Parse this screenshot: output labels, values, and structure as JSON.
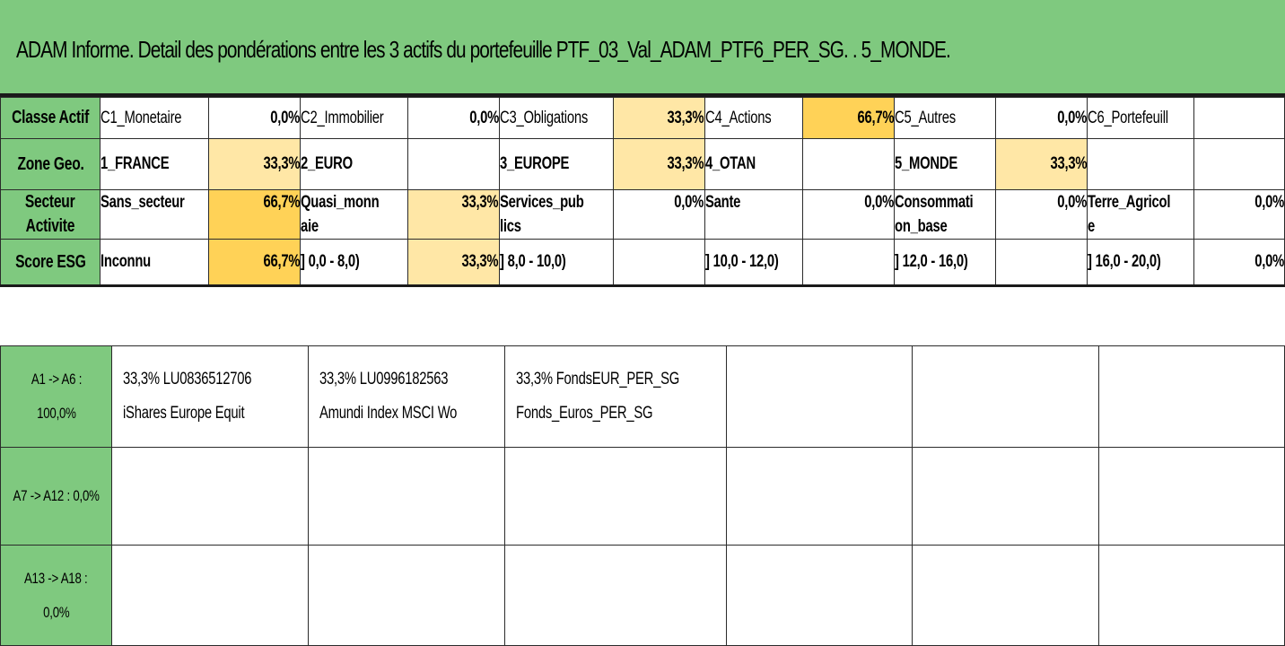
{
  "title": "ADAM Informe. Detail des pondérations entre les 3 actifs du portefeuille PTF_03_Val_ADAM_PTF6_PER_SG. . 5_MONDE.",
  "rows": {
    "classe": {
      "header": "Classe Actif",
      "cells": [
        {
          "label": "C1_Monetaire",
          "value": "0,0%"
        },
        {
          "label": "C2_Immobilier",
          "value": "0,0%"
        },
        {
          "label": "C3_Obligations",
          "value": "33,3%"
        },
        {
          "label": "C4_Actions",
          "value": "66,7%"
        },
        {
          "label": "C5_Autres",
          "value": "0,0%"
        },
        {
          "label": "C6_Portefeuill",
          "value": ""
        }
      ]
    },
    "zone": {
      "header": "Zone Geo.",
      "cells": [
        {
          "label": "1_FRANCE",
          "value": "33,3%"
        },
        {
          "label": "2_EURO",
          "value": ""
        },
        {
          "label": "3_EUROPE",
          "value": "33,3%"
        },
        {
          "label": "4_OTAN",
          "value": ""
        },
        {
          "label": "5_MONDE",
          "value": "33,3%"
        },
        {
          "label": "",
          "value": ""
        }
      ]
    },
    "secteur": {
      "header_line1": "Secteur",
      "header_line2": "Activite",
      "cells": [
        {
          "label_line1": "Sans_secteur",
          "label_line2": "",
          "value": "66,7%"
        },
        {
          "label_line1": "Quasi_monn",
          "label_line2": "aie",
          "value": "33,3%"
        },
        {
          "label_line1": "Services_pub",
          "label_line2": "lics",
          "value": "0,0%"
        },
        {
          "label_line1": "Sante",
          "label_line2": "",
          "value": "0,0%"
        },
        {
          "label_line1": "Consommati",
          "label_line2": "on_base",
          "value": "0,0%"
        },
        {
          "label_line1": "Terre_Agricol",
          "label_line2": "e",
          "value": "0,0%"
        }
      ]
    },
    "score": {
      "header": "Score ESG",
      "cells": [
        {
          "label": "Inconnu",
          "value": "66,7%"
        },
        {
          "label": "] 0,0 - 8,0)",
          "value": "33,3%"
        },
        {
          "label": "] 8,0 - 10,0)",
          "value": ""
        },
        {
          "label": "] 10,0 - 12,0)",
          "value": ""
        },
        {
          "label": "] 12,0 - 16,0)",
          "value": ""
        },
        {
          "label": "] 16,0 - 20,0)",
          "value": "0,0%"
        }
      ]
    }
  },
  "assets": {
    "group1": {
      "header_line1": "A1 -> A6 :",
      "header_line2": "100,0%",
      "items": [
        {
          "line1": "33,3% LU0836512706",
          "line2": "iShares Europe Equit"
        },
        {
          "line1": "33,3% LU0996182563",
          "line2": "Amundi Index MSCI Wo"
        },
        {
          "line1": "33,3% FondsEUR_PER_SG",
          "line2": "Fonds_Euros_PER_SG"
        }
      ]
    },
    "group2": {
      "header": "A7 -> A12 : 0,0%"
    },
    "group3": {
      "header_line1": "A13 -> A18 :",
      "header_line2": "0,0%"
    }
  },
  "colors": {
    "header_green": "#7fc97f",
    "highlight_light": "#ffe7a6",
    "highlight_dark": "#ffd257"
  }
}
